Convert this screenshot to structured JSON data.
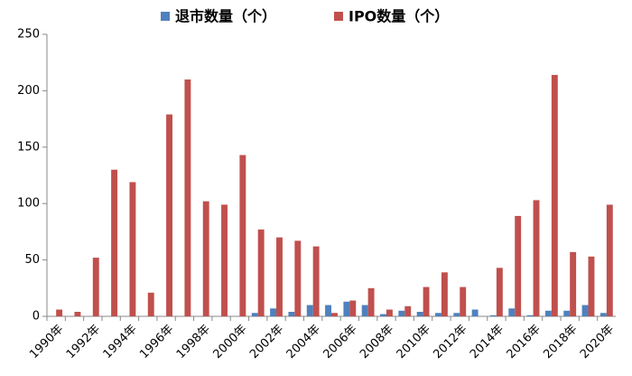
{
  "chart_data": {
    "type": "bar",
    "categories": [
      "1990年",
      null,
      "1992年",
      null,
      "1994年",
      null,
      "1996年",
      null,
      "1998年",
      null,
      "2000年",
      null,
      "2002年",
      null,
      "2004年",
      null,
      "2006年",
      null,
      "2008年",
      null,
      "2010年",
      null,
      "2012年",
      null,
      "2014年",
      null,
      "2016年",
      null,
      "2018年",
      null,
      "2020年"
    ],
    "series": [
      {
        "name": "退市数量（个）",
        "color": "#4f81bd",
        "values": [
          0,
          0,
          0,
          0,
          0,
          0,
          0,
          0,
          0,
          0,
          0,
          3,
          7,
          4,
          10,
          10,
          13,
          10,
          2,
          5,
          4,
          3,
          3,
          6,
          1,
          7,
          1,
          5,
          5,
          10,
          3
        ]
      },
      {
        "name": "IPO数量（个）",
        "color": "#c0504d",
        "values": [
          6,
          4,
          52,
          130,
          119,
          21,
          179,
          210,
          102,
          99,
          143,
          77,
          70,
          67,
          62,
          3,
          14,
          25,
          6,
          9,
          26,
          39,
          26,
          0,
          43,
          89,
          103,
          214,
          57,
          53,
          99
        ]
      }
    ],
    "ylim": [
      0,
      250
    ],
    "yticks": [
      0,
      50,
      100,
      150,
      200,
      250
    ],
    "grid": false,
    "legend": "top"
  }
}
